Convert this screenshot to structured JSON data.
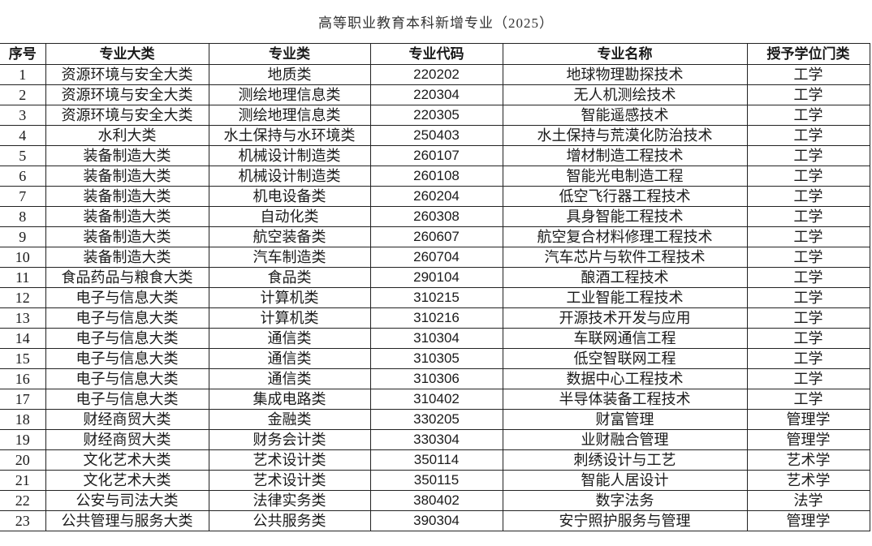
{
  "title": "高等职业教育本科新增专业（2025）",
  "headers": [
    "序号",
    "专业大类",
    "专业类",
    "专业代码",
    "专业名称",
    "授予学位门类"
  ],
  "rows": [
    [
      "1",
      "资源环境与安全大类",
      "地质类",
      "220202",
      "地球物理勘探技术",
      "工学"
    ],
    [
      "2",
      "资源环境与安全大类",
      "测绘地理信息类",
      "220304",
      "无人机测绘技术",
      "工学"
    ],
    [
      "3",
      "资源环境与安全大类",
      "测绘地理信息类",
      "220305",
      "智能遥感技术",
      "工学"
    ],
    [
      "4",
      "水利大类",
      "水土保持与水环境类",
      "250403",
      "水土保持与荒漠化防治技术",
      "工学"
    ],
    [
      "5",
      "装备制造大类",
      "机械设计制造类",
      "260107",
      "增材制造工程技术",
      "工学"
    ],
    [
      "6",
      "装备制造大类",
      "机械设计制造类",
      "260108",
      "智能光电制造工程",
      "工学"
    ],
    [
      "7",
      "装备制造大类",
      "机电设备类",
      "260204",
      "低空飞行器工程技术",
      "工学"
    ],
    [
      "8",
      "装备制造大类",
      "自动化类",
      "260308",
      "具身智能工程技术",
      "工学"
    ],
    [
      "9",
      "装备制造大类",
      "航空装备类",
      "260607",
      "航空复合材料修理工程技术",
      "工学"
    ],
    [
      "10",
      "装备制造大类",
      "汽车制造类",
      "260704",
      "汽车芯片与软件工程技术",
      "工学"
    ],
    [
      "11",
      "食品药品与粮食大类",
      "食品类",
      "290104",
      "酿酒工程技术",
      "工学"
    ],
    [
      "12",
      "电子与信息大类",
      "计算机类",
      "310215",
      "工业智能工程技术",
      "工学"
    ],
    [
      "13",
      "电子与信息大类",
      "计算机类",
      "310216",
      "开源技术开发与应用",
      "工学"
    ],
    [
      "14",
      "电子与信息大类",
      "通信类",
      "310304",
      "车联网通信工程",
      "工学"
    ],
    [
      "15",
      "电子与信息大类",
      "通信类",
      "310305",
      "低空智联网工程",
      "工学"
    ],
    [
      "16",
      "电子与信息大类",
      "通信类",
      "310306",
      "数据中心工程技术",
      "工学"
    ],
    [
      "17",
      "电子与信息大类",
      "集成电路类",
      "310402",
      "半导体装备工程技术",
      "工学"
    ],
    [
      "18",
      "财经商贸大类",
      "金融类",
      "330205",
      "财富管理",
      "管理学"
    ],
    [
      "19",
      "财经商贸大类",
      "财务会计类",
      "330304",
      "业财融合管理",
      "管理学"
    ],
    [
      "20",
      "文化艺术大类",
      "艺术设计类",
      "350114",
      "刺绣设计与工艺",
      "艺术学"
    ],
    [
      "21",
      "文化艺术大类",
      "艺术设计类",
      "350115",
      "智能人居设计",
      "艺术学"
    ],
    [
      "22",
      "公安与司法大类",
      "法律实务类",
      "380402",
      "数字法务",
      "法学"
    ],
    [
      "23",
      "公共管理与服务大类",
      "公共服务类",
      "390304",
      "安宁照护服务与管理",
      "管理学"
    ]
  ]
}
